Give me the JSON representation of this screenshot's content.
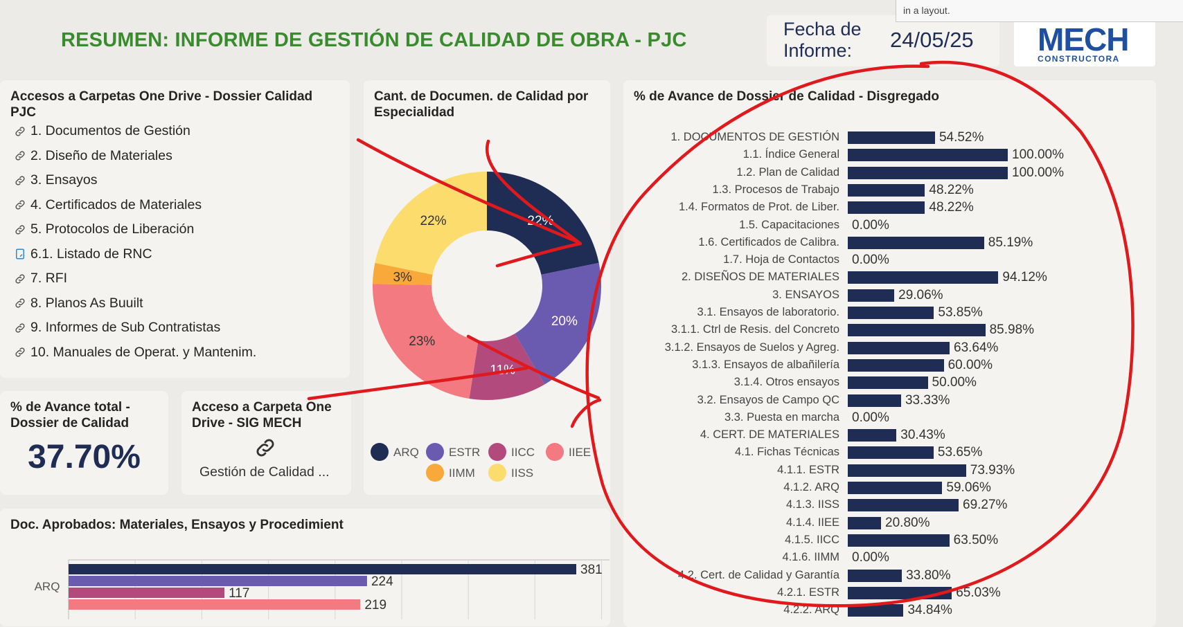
{
  "header": {
    "title": "RESUMEN: INFORME DE GESTIÓN DE CALIDAD DE OBRA - PJC",
    "date_label": "Fecha de Informe:",
    "date_label_line1": "Fecha de",
    "date_label_line2": "Informe:",
    "date_value": "24/05/25",
    "logo_main": "MECH",
    "logo_sub": "CONSTRUCTORA",
    "tooltip": "in a layout."
  },
  "links_card": {
    "title": "Accesos a Carpetas One Drive - Dossier Calidad PJC",
    "title_line1": "Accesos a Carpetas One Drive - Dossier Calidad",
    "title_line2": "PJC",
    "items": [
      {
        "label": "1. Documentos de Gestión",
        "icon": "link-icon"
      },
      {
        "label": "2. Diseño de Materiales",
        "icon": "link-icon"
      },
      {
        "label": "3. Ensayos",
        "icon": "link-icon"
      },
      {
        "label": "4. Certificados de Materiales",
        "icon": "link-icon"
      },
      {
        "label": "5. Protocolos de Liberación",
        "icon": "link-icon"
      },
      {
        "label": "6.1. Listado de RNC",
        "icon": "document-icon"
      },
      {
        "label": "7. RFI",
        "icon": "link-icon"
      },
      {
        "label": "8. Planos As Buuilt",
        "icon": "link-icon"
      },
      {
        "label": "9. Informes de Sub Contratistas",
        "icon": "link-icon"
      },
      {
        "label": "10. Manuales de Operat. y Mantenim.",
        "icon": "link-icon"
      }
    ]
  },
  "total_card": {
    "title_line1": "% de Avance total -",
    "title_line2": "Dossier de Calidad",
    "value": "37.70%"
  },
  "sig_card": {
    "title_line1": "Acceso a Carpeta One",
    "title_line2": "Drive - SIG  MECH",
    "link_label": "Gestión de Calidad ..."
  },
  "donut_card": {
    "title_line1": "Cant. de Documen. de Calidad por",
    "title_line2": "Especialidad"
  },
  "approved_card": {
    "title": "Doc. Aprobados: Materiales, Ensayos y Procedimient"
  },
  "progress_card": {
    "title": "% de Avance de Dossier de Calidad - Disgregado"
  },
  "colors": {
    "navy": "#1f2d55",
    "purple": "#6b5bb0",
    "magenta": "#b24a7e",
    "pink": "#f27a80",
    "orange": "#f8a93a",
    "yellow": "#fbdc6d",
    "title_green": "#3a8a2e",
    "annotation_red": "#e0191c"
  },
  "chart_data": [
    {
      "type": "pie",
      "variant": "donut",
      "title": "Cant. de Documen. de Calidad por Especialidad",
      "categories": [
        "ARQ",
        "ESTR",
        "IICC",
        "IIEE",
        "IIMM",
        "IISS"
      ],
      "values": [
        22,
        20,
        11,
        23,
        3,
        22
      ],
      "labels": [
        "22%",
        "20%",
        "11%",
        "23%",
        "3%",
        "22%"
      ],
      "colors": [
        "#1f2d55",
        "#6b5bb0",
        "#b24a7e",
        "#f27a80",
        "#f8a93a",
        "#fbdc6d"
      ],
      "legend": "bottom"
    },
    {
      "type": "bar",
      "orientation": "horizontal",
      "title": "% de Avance de Dossier de Calidad - Disgregado",
      "xlim": [
        0,
        100
      ],
      "categories": [
        "1. DOCUMENTOS DE GESTIÓN",
        "1.1. Índice General",
        "1.2. Plan de Calidad",
        "1.3. Procesos de Trabajo",
        "1.4. Formatos de Prot. de Liber.",
        "1.5. Capacitaciones",
        "1.6. Certificados de Calibra.",
        "1.7. Hoja de Contactos",
        "2. DISEÑOS DE MATERIALES",
        "3. ENSAYOS",
        "3.1. Ensayos de laboratorio.",
        "3.1.1. Ctrl de Resis. del Concreto",
        "3.1.2. Ensayos de Suelos y Agreg.",
        "3.1.3. Ensayos de albañilería",
        "3.1.4. Otros ensayos",
        "3.2. Ensayos de Campo QC",
        "3.3. Puesta en marcha",
        "4. CERT. DE MATERIALES",
        "4.1. Fichas Técnicas",
        "4.1.1. ESTR",
        "4.1.2. ARQ",
        "4.1.3. IISS",
        "4.1.4. IIEE",
        "4.1.5. IICC",
        "4.1.6. IIMM",
        "4.2. Cert. de Calidad y Garantía",
        "4.2.1. ESTR",
        "4.2.2. ARQ"
      ],
      "values": [
        54.52,
        100,
        100,
        48.22,
        48.22,
        0,
        85.19,
        0,
        94.12,
        29.06,
        53.85,
        85.98,
        63.64,
        60,
        50,
        33.33,
        0,
        30.43,
        53.65,
        73.93,
        59.06,
        69.27,
        20.8,
        63.5,
        0,
        33.8,
        65.03,
        34.84
      ],
      "labels": [
        "54.52%",
        "100.00%",
        "100.00%",
        "48.22%",
        "48.22%",
        "0.00%",
        "85.19%",
        "0.00%",
        "94.12%",
        "29.06%",
        "53.85%",
        "85.98%",
        "63.64%",
        "60.00%",
        "50.00%",
        "33.33%",
        "0.00%",
        "30.43%",
        "53.65%",
        "73.93%",
        "59.06%",
        "69.27%",
        "20.80%",
        "63.50%",
        "0.00%",
        "33.80%",
        "65.03%",
        "34.84%"
      ],
      "color": "#1f2d55"
    },
    {
      "type": "bar",
      "orientation": "horizontal",
      "title": "Doc. Aprobados: Materiales, Ensayos y Procedimient",
      "categories": [
        "ARQ"
      ],
      "series": [
        {
          "values": [
            381
          ],
          "color": "#1f2d55"
        },
        {
          "values": [
            224
          ],
          "color": "#6b5bb0"
        },
        {
          "values": [
            117
          ],
          "color": "#b24a7e"
        },
        {
          "values": [
            219
          ],
          "color": "#f27a80"
        }
      ],
      "xlim": [
        0,
        400
      ]
    }
  ]
}
